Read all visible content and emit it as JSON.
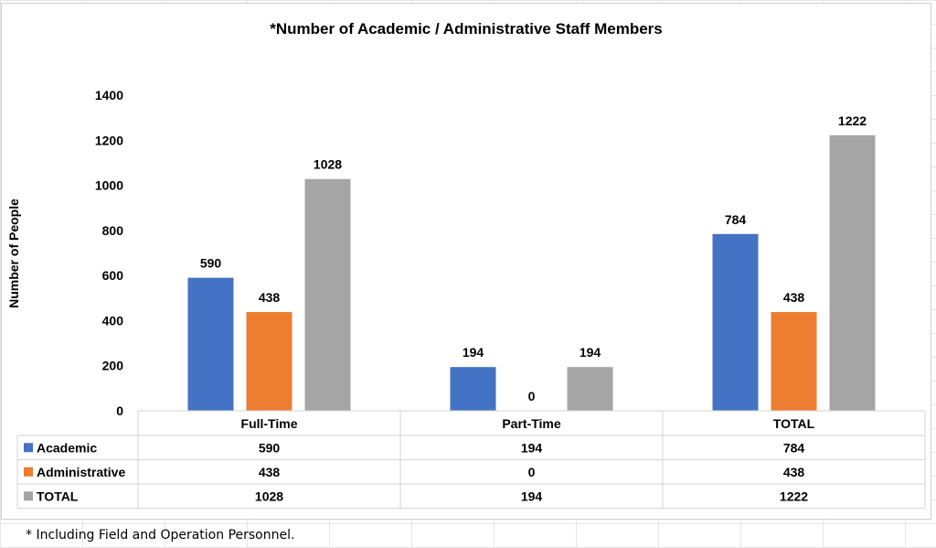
{
  "chart_data": {
    "type": "bar",
    "title": "*Number of Academic / Administrative Staff Members",
    "ylabel": "Number of People",
    "xlabel": "",
    "ylim": [
      0,
      1400
    ],
    "yticks": [
      0,
      200,
      400,
      600,
      800,
      1000,
      1200,
      1400
    ],
    "categories": [
      "Full-Time",
      "Part-Time",
      "TOTAL"
    ],
    "series": [
      {
        "name": "Academic",
        "color": "#4472C4",
        "values": [
          590,
          194,
          784
        ]
      },
      {
        "name": "Administrative",
        "color": "#ED7D31",
        "values": [
          438,
          0,
          438
        ]
      },
      {
        "name": "TOTAL",
        "color": "#A5A5A5",
        "values": [
          1028,
          194,
          1222
        ]
      }
    ],
    "data_table": true,
    "grid": false
  },
  "footnote": "* Including Field and Operation Personnel."
}
